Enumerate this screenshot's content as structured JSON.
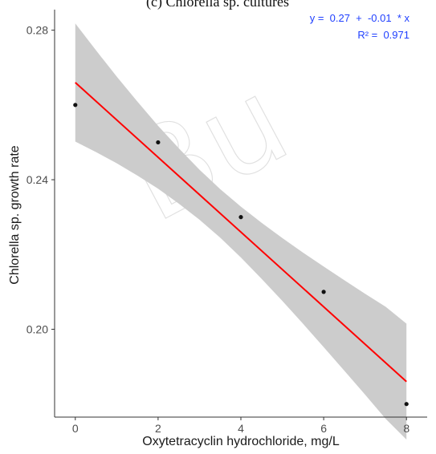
{
  "caption": "(c) Chlorella sp. cultures",
  "watermark_text": "Bu",
  "chart_data": {
    "type": "scatter",
    "xlabel": "Oxytetracyclin hydrochloride, mg/L",
    "ylabel": "Chlorella sp. growth rate",
    "xlim": [
      -0.5,
      8.5
    ],
    "ylim": [
      0.1765,
      0.2855
    ],
    "x_ticks": [
      0,
      2,
      4,
      6,
      8
    ],
    "x_tick_labels": [
      "0",
      "2",
      "4",
      "6",
      "8"
    ],
    "y_ticks": [
      0.2,
      0.24,
      0.28
    ],
    "y_tick_labels": [
      "0.20",
      "0.24",
      "0.28"
    ],
    "points": [
      {
        "x": 0,
        "y": 0.26
      },
      {
        "x": 2,
        "y": 0.25
      },
      {
        "x": 4,
        "y": 0.23
      },
      {
        "x": 6,
        "y": 0.21
      },
      {
        "x": 8,
        "y": 0.18
      }
    ],
    "fit_line": {
      "x": [
        0,
        8
      ],
      "y": [
        0.266,
        0.186
      ],
      "color": "#ff0000"
    },
    "confidence_band": {
      "x": [
        0,
        0.5,
        1,
        1.5,
        2,
        2.5,
        3,
        3.5,
        4,
        4.5,
        5,
        5.5,
        6,
        6.5,
        7,
        7.5,
        8
      ],
      "upper": [
        0.2818,
        0.2746,
        0.2676,
        0.2609,
        0.2544,
        0.2484,
        0.2427,
        0.2375,
        0.2328,
        0.2285,
        0.2244,
        0.2205,
        0.2168,
        0.2131,
        0.2095,
        0.206,
        0.2015
      ],
      "lower": [
        0.2502,
        0.2474,
        0.2444,
        0.2411,
        0.2376,
        0.2336,
        0.2293,
        0.2245,
        0.2192,
        0.2135,
        0.2076,
        0.2015,
        0.1952,
        0.1889,
        0.1825,
        0.176,
        0.1705
      ],
      "color": "#cccccc"
    },
    "grid": false,
    "annotation": {
      "equation": "y =  0.27  +  -0.01  * x",
      "r_squared": "R² =  0.971",
      "color": "#1f3fff",
      "placement": "top-right"
    }
  }
}
